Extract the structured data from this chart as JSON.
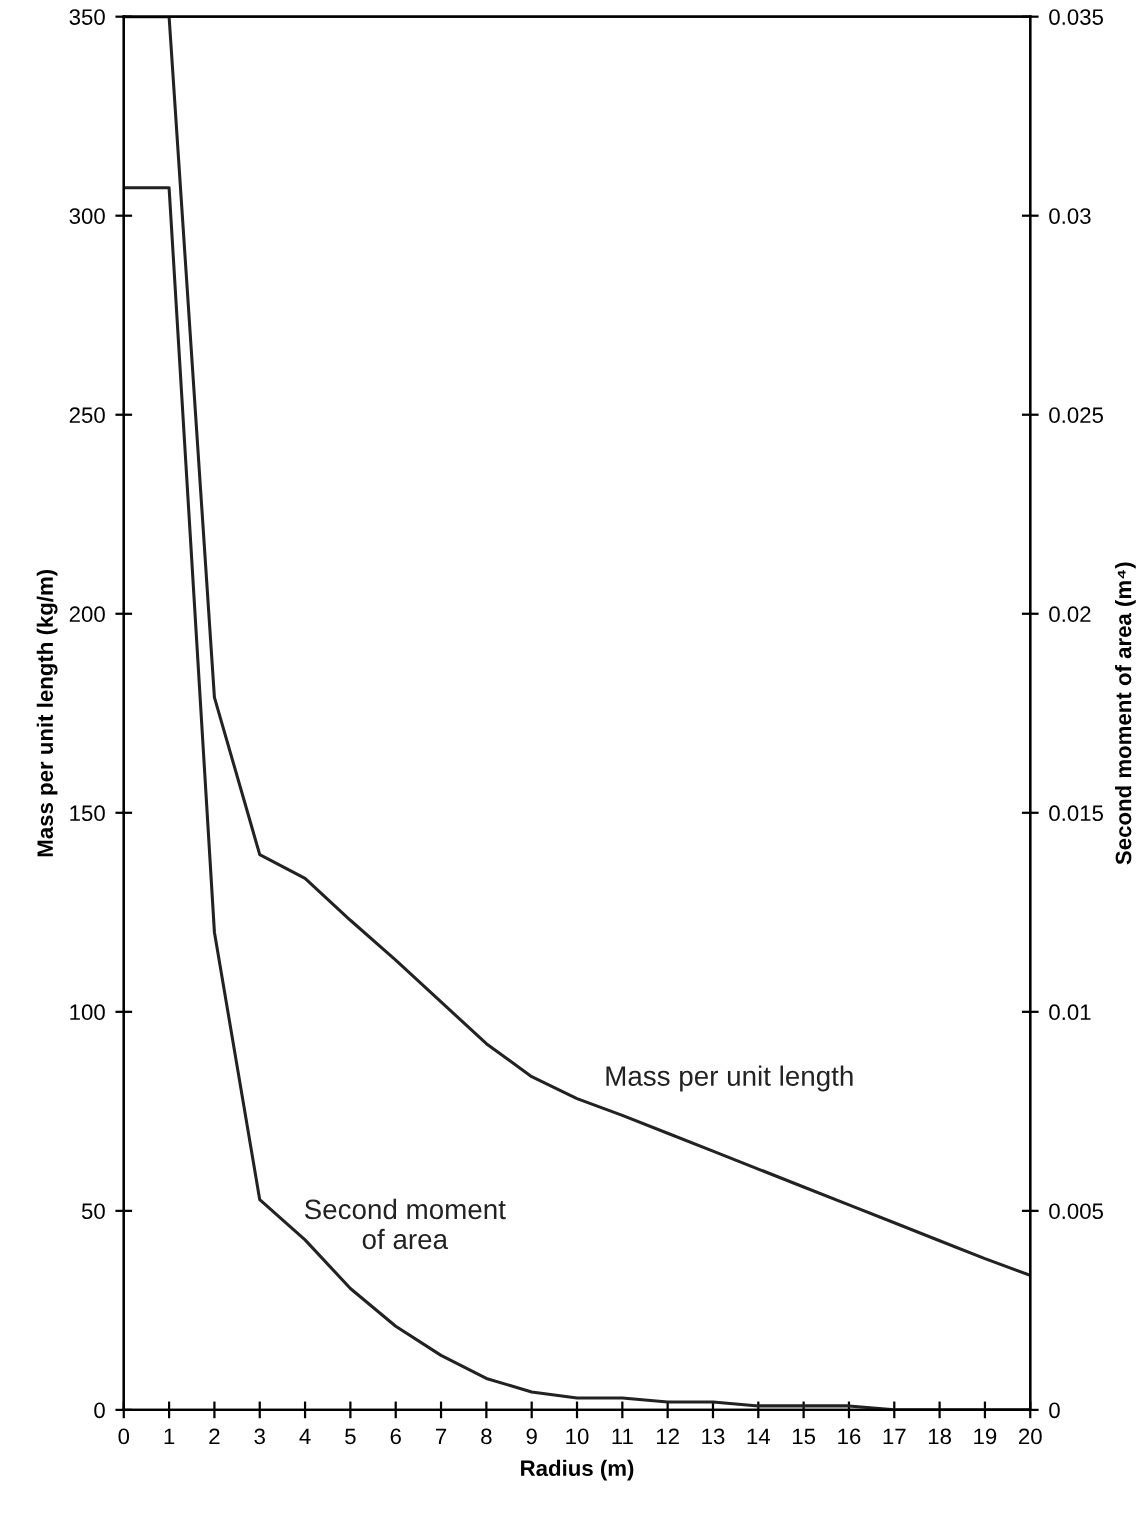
{
  "chart_data": {
    "type": "line",
    "xlabel": "Radius (m)",
    "ylabel": "Mass per unit length (kg/m)",
    "y2label": "Second moment of area (m⁴)",
    "x": [
      0,
      1,
      2,
      3,
      4,
      5,
      6,
      7,
      8,
      9,
      10,
      11,
      12,
      13,
      14,
      15,
      16,
      17,
      18,
      19,
      20
    ],
    "series": [
      {
        "name": "Mass per unit length",
        "color": "#222222",
        "values": [
          350,
          350,
          179,
          139.5,
          133.5,
          123,
          113,
          102.5,
          92,
          83.7,
          78.2,
          74,
          69.5,
          65,
          60.5,
          56,
          51.5,
          47,
          42.5,
          38,
          33.8
        ]
      },
      {
        "name": "Second moment\nof area",
        "color": "#222222",
        "axis": "y2",
        "values": [
          0.0307,
          0.0307,
          0.012,
          0.00528,
          0.00427,
          0.00305,
          0.0021,
          0.00137,
          0.00079,
          0.00045,
          0.0003,
          0.0003,
          0.0002,
          0.0002,
          0.0001,
          0.0001,
          0.0001,
          0,
          0,
          0,
          0
        ]
      }
    ],
    "xlim": [
      0,
      20
    ],
    "xticks": [
      0,
      1,
      2,
      3,
      4,
      5,
      6,
      7,
      8,
      9,
      10,
      11,
      12,
      13,
      14,
      15,
      16,
      17,
      18,
      19,
      20
    ],
    "ylim": [
      0,
      350
    ],
    "yticks": [
      0,
      50,
      100,
      150,
      200,
      250,
      300,
      350
    ],
    "y2lim": [
      0,
      0.035
    ],
    "y2ticks": [
      0,
      0.005,
      0.01,
      0.015,
      0.02,
      0.025,
      0.03,
      0.035
    ],
    "grid": false,
    "legend": false,
    "marker": "none",
    "line_style": "solid"
  }
}
